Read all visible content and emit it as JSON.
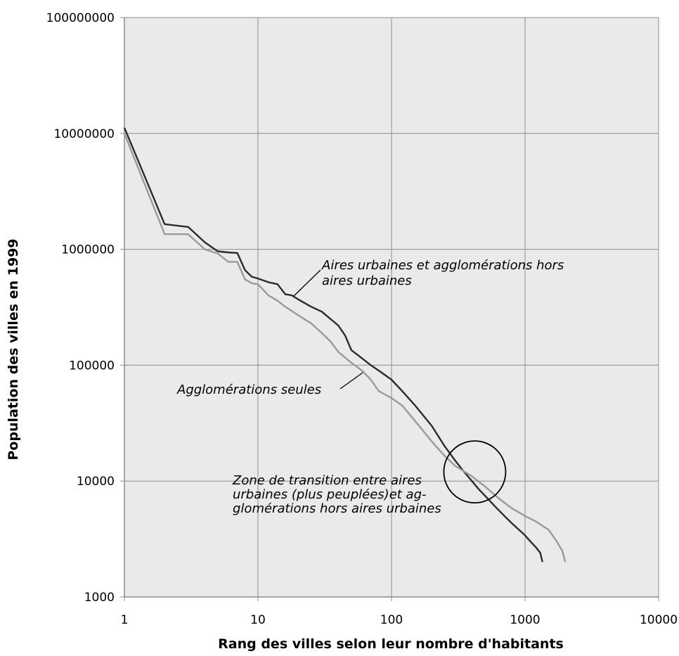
{
  "chart_data": {
    "type": "line",
    "xlabel": "Rang des villes selon leur nombre d'habitants",
    "ylabel": "Population des villes en 1999",
    "x_scale": "log",
    "y_scale": "log",
    "xlim": [
      1,
      10000
    ],
    "ylim": [
      1000,
      100000000
    ],
    "x_ticks": [
      "1",
      "10",
      "100",
      "1000",
      "10000"
    ],
    "y_ticks": [
      "1000",
      "10000",
      "100000",
      "1000000",
      "10000000",
      "100000000"
    ],
    "grid": true,
    "background": "#eaeaea",
    "series": [
      {
        "key": "aires",
        "color": "#2b2b2b",
        "points": [
          [
            1,
            11200000
          ],
          [
            2,
            1650000
          ],
          [
            3,
            1560000
          ],
          [
            4,
            1150000
          ],
          [
            5,
            960000
          ],
          [
            6,
            940000
          ],
          [
            7,
            930000
          ],
          [
            8,
            660000
          ],
          [
            9,
            580000
          ],
          [
            10,
            560000
          ],
          [
            12,
            520000
          ],
          [
            14,
            500000
          ],
          [
            16,
            410000
          ],
          [
            18,
            400000
          ],
          [
            20,
            370000
          ],
          [
            25,
            320000
          ],
          [
            30,
            290000
          ],
          [
            35,
            250000
          ],
          [
            40,
            220000
          ],
          [
            45,
            180000
          ],
          [
            50,
            135000
          ],
          [
            60,
            115000
          ],
          [
            70,
            100000
          ],
          [
            80,
            90000
          ],
          [
            100,
            75000
          ],
          [
            120,
            60000
          ],
          [
            150,
            45000
          ],
          [
            200,
            30000
          ],
          [
            250,
            20000
          ],
          [
            300,
            15000
          ],
          [
            350,
            12000
          ],
          [
            400,
            10000
          ],
          [
            450,
            8500
          ],
          [
            500,
            7500
          ],
          [
            600,
            6000
          ],
          [
            700,
            5000
          ],
          [
            800,
            4300
          ],
          [
            900,
            3800
          ],
          [
            1000,
            3400
          ],
          [
            1100,
            3000
          ],
          [
            1200,
            2700
          ],
          [
            1300,
            2400
          ],
          [
            1350,
            2000
          ]
        ]
      },
      {
        "key": "agglo",
        "color": "#9a9a9a",
        "points": [
          [
            1,
            10000000
          ],
          [
            2,
            1350000
          ],
          [
            3,
            1350000
          ],
          [
            4,
            1000000
          ],
          [
            5,
            920000
          ],
          [
            6,
            780000
          ],
          [
            7,
            780000
          ],
          [
            8,
            550000
          ],
          [
            9,
            510000
          ],
          [
            10,
            500000
          ],
          [
            12,
            400000
          ],
          [
            14,
            360000
          ],
          [
            16,
            320000
          ],
          [
            20,
            270000
          ],
          [
            25,
            230000
          ],
          [
            30,
            190000
          ],
          [
            35,
            160000
          ],
          [
            40,
            130000
          ],
          [
            50,
            105000
          ],
          [
            60,
            90000
          ],
          [
            70,
            75000
          ],
          [
            80,
            60000
          ],
          [
            100,
            52000
          ],
          [
            120,
            45000
          ],
          [
            150,
            33000
          ],
          [
            200,
            22000
          ],
          [
            250,
            16500
          ],
          [
            300,
            13500
          ],
          [
            400,
            11000
          ],
          [
            500,
            9000
          ],
          [
            600,
            7500
          ],
          [
            700,
            6500
          ],
          [
            800,
            5800
          ],
          [
            1000,
            5000
          ],
          [
            1200,
            4500
          ],
          [
            1500,
            3800
          ],
          [
            1700,
            3100
          ],
          [
            1900,
            2500
          ],
          [
            2000,
            2000
          ]
        ]
      }
    ],
    "annotations": {
      "aires_lines": [
        "Aires urbaines et agglomérations hors",
        "aires urbaines"
      ],
      "agglo_lines": [
        "Agglomérations seules"
      ],
      "zone_lines": [
        "Zone de transition entre aires",
        "urbaines (plus peuplées)et ag-",
        "glomérations hors aires urbaines"
      ]
    },
    "transition_circle": {
      "x": 420,
      "y": 12000
    }
  }
}
